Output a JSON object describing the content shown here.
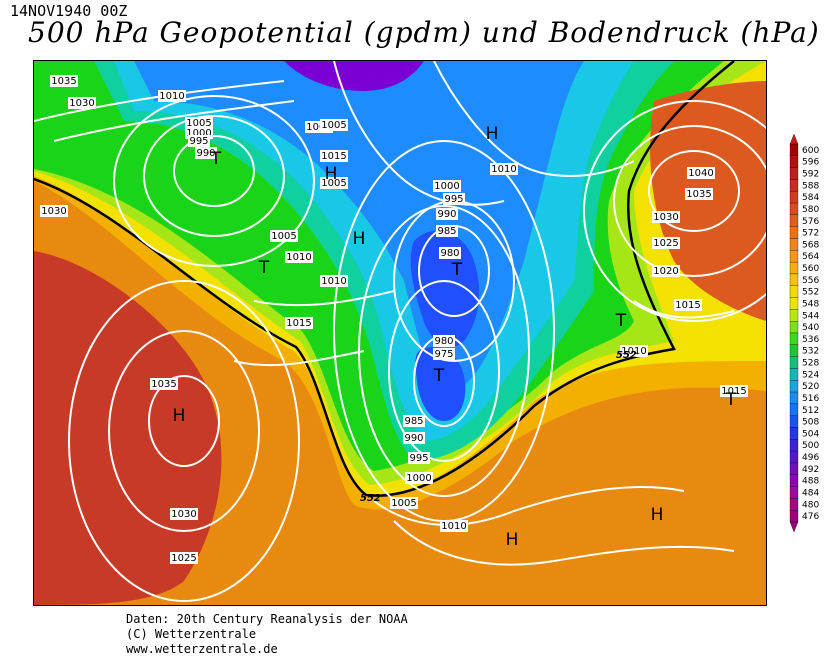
{
  "header": {
    "timestamp": "14NOV1940 00Z",
    "title": "500 hPa Geopotential (gpdm) und Bodendruck (hPa)"
  },
  "map": {
    "pressure_labels": [
      "1035",
      "1030",
      "1010",
      "1005",
      "1000",
      "995",
      "990",
      "1015",
      "1005",
      "1010",
      "1015",
      "1000",
      "1005",
      "1010",
      "1000",
      "995",
      "990",
      "985",
      "980",
      "1010",
      "1040",
      "1035",
      "1030",
      "1025",
      "1020",
      "1015",
      "1010",
      "980",
      "975",
      "985",
      "990",
      "995",
      "1000",
      "1005",
      "1010",
      "1035",
      "1030",
      "1025",
      "1015",
      "1030",
      "1005"
    ],
    "centers": [
      {
        "type": "H",
        "note": "high"
      },
      {
        "type": "H",
        "note": "high"
      },
      {
        "type": "H",
        "note": "high"
      },
      {
        "type": "T",
        "note": "low"
      },
      {
        "type": "T",
        "note": "low"
      },
      {
        "type": "T",
        "note": "low"
      },
      {
        "type": "T",
        "note": "low"
      },
      {
        "type": "T",
        "note": "low"
      },
      {
        "type": "H",
        "note": "high"
      },
      {
        "type": "H",
        "note": "high"
      },
      {
        "type": "H",
        "note": "high"
      },
      {
        "type": "T",
        "note": "low"
      }
    ],
    "contour_552_labels": [
      "552",
      "552"
    ],
    "colors": {
      "purple": "#7a00d6",
      "blue_dark": "#1f4fff",
      "blue": "#1e8cff",
      "cyan": "#18c8e6",
      "teal": "#10d0a0",
      "green": "#1ad41a",
      "lime": "#a6e617",
      "yellow": "#f3e100",
      "amber": "#f3b000",
      "orange": "#e88a10",
      "red_orange": "#dc5a20",
      "red": "#c83a28"
    }
  },
  "legend": {
    "values": [
      "600",
      "596",
      "592",
      "588",
      "584",
      "580",
      "576",
      "572",
      "568",
      "564",
      "560",
      "556",
      "552",
      "548",
      "544",
      "540",
      "536",
      "532",
      "528",
      "524",
      "520",
      "516",
      "512",
      "508",
      "504",
      "500",
      "496",
      "492",
      "488",
      "484",
      "480",
      "476"
    ],
    "colors": [
      "#a80000",
      "#b50e0e",
      "#c21c1c",
      "#cc2a20",
      "#d43a22",
      "#da4a22",
      "#df5e20",
      "#e4731c",
      "#e98818",
      "#ee9c12",
      "#f2b00c",
      "#f4c408",
      "#f5d806",
      "#e8e406",
      "#b8e80c",
      "#7ee014",
      "#44d41c",
      "#18c836",
      "#12c07a",
      "#10b8b4",
      "#14a6dc",
      "#1a8cf0",
      "#1c70f4",
      "#1e52f4",
      "#2436e8",
      "#3a22d8",
      "#5418c8",
      "#7010b8",
      "#8a0ca8",
      "#a00a98",
      "#a8087e",
      "#98067a"
    ]
  },
  "footer": {
    "line1": "Daten: 20th Century Reanalysis der NOAA",
    "line2": "(C) Wetterzentrale",
    "line3": "www.wetterzentrale.de"
  }
}
